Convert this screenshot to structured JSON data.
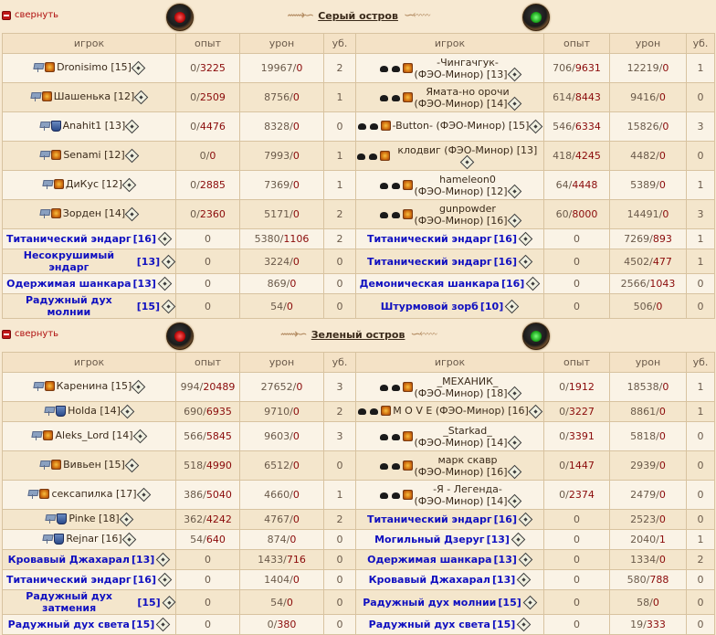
{
  "collapse_label": "свернуть",
  "headers": [
    "игрок",
    "опыт",
    "урон",
    "уб.",
    "игрок",
    "опыт",
    "урон",
    "уб."
  ],
  "islands": [
    {
      "title": "Серый остров",
      "rows": [
        {
          "tall": true,
          "l": {
            "name": "Dronisimo",
            "lvl": "[15]",
            "type": "player",
            "icons": [
              "flag",
              "align"
            ]
          },
          "l_exp": [
            "0",
            "3225"
          ],
          "l_dmg": [
            "19967",
            "0"
          ],
          "l_kills": "2",
          "r": {
            "name": "-Чингачгук-",
            "suffix": "(ФЭО-Минор)",
            "lvl": "[13]",
            "type": "player",
            "icons": [
              "hand",
              "align"
            ],
            "two": true
          },
          "r_exp": [
            "706",
            "9631"
          ],
          "r_dmg": [
            "12219",
            "0"
          ],
          "r_kills": "1"
        },
        {
          "tall": true,
          "l": {
            "name": "Шашенька",
            "lvl": "[12]",
            "type": "player",
            "icons": [
              "flag",
              "align"
            ]
          },
          "l_exp": [
            "0",
            "2509"
          ],
          "l_dmg": [
            "8756",
            "0"
          ],
          "l_kills": "1",
          "r": {
            "name": "Ямата-но орочи",
            "suffix": "(ФЭО-Минор)",
            "lvl": "[14]",
            "type": "player",
            "icons": [
              "hand",
              "align"
            ],
            "two": true
          },
          "r_exp": [
            "614",
            "8443"
          ],
          "r_dmg": [
            "9416",
            "0"
          ],
          "r_kills": "0"
        },
        {
          "tall": true,
          "l": {
            "name": "Anahit1",
            "lvl": "[13]",
            "type": "player",
            "icons": [
              "flag",
              "clan"
            ]
          },
          "l_exp": [
            "0",
            "4476"
          ],
          "l_dmg": [
            "8328",
            "0"
          ],
          "l_kills": "0",
          "r": {
            "name": "-Button-",
            "suffix": "(ФЭО-Минор)",
            "lvl": "[15]",
            "type": "player",
            "icons": [
              "hand",
              "align"
            ]
          },
          "r_exp": [
            "546",
            "6334"
          ],
          "r_dmg": [
            "15826",
            "0"
          ],
          "r_kills": "3"
        },
        {
          "tall": true,
          "l": {
            "name": "Senami",
            "lvl": "[12]",
            "type": "player",
            "icons": [
              "flag",
              "align"
            ]
          },
          "l_exp": [
            "0",
            "0"
          ],
          "l_dmg": [
            "7993",
            "0"
          ],
          "l_kills": "1",
          "r": {
            "name": "клодвиг",
            "suffix": "(ФЭО-Минор)",
            "lvl": "[13]",
            "type": "player",
            "icons": [
              "hand",
              "align"
            ]
          },
          "r_exp": [
            "418",
            "4245"
          ],
          "r_dmg": [
            "4482",
            "0"
          ],
          "r_kills": "0"
        },
        {
          "tall": true,
          "l": {
            "name": "ДиКус",
            "lvl": "[12]",
            "type": "player",
            "icons": [
              "flag",
              "align"
            ]
          },
          "l_exp": [
            "0",
            "2885"
          ],
          "l_dmg": [
            "7369",
            "0"
          ],
          "l_kills": "1",
          "r": {
            "name": "hameleon0",
            "suffix": "(ФЭО-Минор)",
            "lvl": "[12]",
            "type": "player",
            "icons": [
              "hand",
              "align"
            ],
            "two": true
          },
          "r_exp": [
            "64",
            "4448"
          ],
          "r_dmg": [
            "5389",
            "0"
          ],
          "r_kills": "1"
        },
        {
          "tall": true,
          "l": {
            "name": "Зорден",
            "lvl": "[14]",
            "type": "player",
            "icons": [
              "flag",
              "align"
            ]
          },
          "l_exp": [
            "0",
            "2360"
          ],
          "l_dmg": [
            "5171",
            "0"
          ],
          "l_kills": "2",
          "r": {
            "name": "gunpowder",
            "suffix": "(ФЭО-Минор)",
            "lvl": "[16]",
            "type": "player",
            "icons": [
              "hand",
              "align"
            ],
            "two": true
          },
          "r_exp": [
            "60",
            "8000"
          ],
          "r_dmg": [
            "14491",
            "0"
          ],
          "r_kills": "3"
        },
        {
          "l": {
            "name": "Титанический эндарг",
            "lvl": "[16]",
            "type": "bot"
          },
          "l_exp": [
            "0"
          ],
          "l_dmg": [
            "5380",
            "1106"
          ],
          "l_kills": "2",
          "r": {
            "name": "Титанический эндарг",
            "lvl": "[16]",
            "type": "bot"
          },
          "r_exp": [
            "0"
          ],
          "r_dmg": [
            "7269",
            "893"
          ],
          "r_kills": "1"
        },
        {
          "l": {
            "name": "Несокрушимый эндарг",
            "lvl": "[13]",
            "type": "bot"
          },
          "l_exp": [
            "0"
          ],
          "l_dmg": [
            "3224",
            "0"
          ],
          "l_kills": "0",
          "r": {
            "name": "Титанический эндарг",
            "lvl": "[16]",
            "type": "bot"
          },
          "r_exp": [
            "0"
          ],
          "r_dmg": [
            "4502",
            "477"
          ],
          "r_kills": "1"
        },
        {
          "l": {
            "name": "Одержимая шанкара",
            "lvl": "[13]",
            "type": "bot"
          },
          "l_exp": [
            "0"
          ],
          "l_dmg": [
            "869",
            "0"
          ],
          "l_kills": "0",
          "r": {
            "name": "Демоническая шанкара",
            "lvl": "[16]",
            "type": "bot"
          },
          "r_exp": [
            "0"
          ],
          "r_dmg": [
            "2566",
            "1043"
          ],
          "r_kills": "0"
        },
        {
          "l": {
            "name": "Радужный дух молнии ",
            "lvl": "[15]",
            "type": "bot"
          },
          "l_exp": [
            "0"
          ],
          "l_dmg": [
            "54",
            "0"
          ],
          "l_kills": "0",
          "r": {
            "name": "Штурмовой зорб",
            "lvl": "[10]",
            "type": "bot"
          },
          "r_exp": [
            "0"
          ],
          "r_dmg": [
            "506",
            "0"
          ],
          "r_kills": "0"
        }
      ]
    },
    {
      "title": "Зеленый остров",
      "rows": [
        {
          "tall": true,
          "l": {
            "name": "Каренина",
            "lvl": "[15]",
            "type": "player",
            "icons": [
              "flag",
              "align"
            ]
          },
          "l_exp": [
            "994",
            "20489"
          ],
          "l_dmg": [
            "27652",
            "0"
          ],
          "l_kills": "3",
          "r": {
            "name": "_МЕХАНИК_",
            "suffix": "(ФЭО-Минор)",
            "lvl": "[18]",
            "type": "player",
            "icons": [
              "hand",
              "align"
            ],
            "two": true
          },
          "r_exp": [
            "0",
            "1912"
          ],
          "r_dmg": [
            "18538",
            "0"
          ],
          "r_kills": "1"
        },
        {
          "l": {
            "name": "Holda",
            "lvl": "[14]",
            "type": "player",
            "icons": [
              "flag",
              "clan"
            ]
          },
          "l_exp": [
            "690",
            "6935"
          ],
          "l_dmg": [
            "9710",
            "0"
          ],
          "l_kills": "2",
          "r": {
            "name": "M O V E",
            "suffix": "(ФЭО-Минор)",
            "lvl": "[16]",
            "type": "player",
            "icons": [
              "hand",
              "align"
            ]
          },
          "r_exp": [
            "0",
            "3227"
          ],
          "r_dmg": [
            "8861",
            "0"
          ],
          "r_kills": "1"
        },
        {
          "tall": true,
          "l": {
            "name": "Aleks_Lord",
            "lvl": "[14]",
            "type": "player",
            "icons": [
              "flag",
              "align"
            ]
          },
          "l_exp": [
            "566",
            "5845"
          ],
          "l_dmg": [
            "9603",
            "0"
          ],
          "l_kills": "3",
          "r": {
            "name": "_Starkad_",
            "suffix": "(ФЭО-Минор)",
            "lvl": "[14]",
            "type": "player",
            "icons": [
              "hand",
              "align"
            ],
            "two": true
          },
          "r_exp": [
            "0",
            "3391"
          ],
          "r_dmg": [
            "5818",
            "0"
          ],
          "r_kills": "0"
        },
        {
          "tall": true,
          "l": {
            "name": "Вивьен",
            "lvl": "[15]",
            "type": "player",
            "icons": [
              "flag",
              "align"
            ]
          },
          "l_exp": [
            "518",
            "4990"
          ],
          "l_dmg": [
            "6512",
            "0"
          ],
          "l_kills": "0",
          "r": {
            "name": "марк скавр",
            "suffix": "(ФЭО-Минор)",
            "lvl": "[16]",
            "type": "player",
            "icons": [
              "hand",
              "align"
            ],
            "two": true
          },
          "r_exp": [
            "0",
            "1447"
          ],
          "r_dmg": [
            "2939",
            "0"
          ],
          "r_kills": "0"
        },
        {
          "tall": true,
          "l": {
            "name": "сексапилка",
            "lvl": "[17]",
            "type": "player",
            "icons": [
              "flag",
              "align"
            ]
          },
          "l_exp": [
            "386",
            "5040"
          ],
          "l_dmg": [
            "4660",
            "0"
          ],
          "l_kills": "1",
          "r": {
            "name": "-Я - Легенда-",
            "suffix": "(ФЭО-Минор)",
            "lvl": "[14]",
            "type": "player",
            "icons": [
              "hand",
              "align"
            ],
            "two": true
          },
          "r_exp": [
            "0",
            "2374"
          ],
          "r_dmg": [
            "2479",
            "0"
          ],
          "r_kills": "0"
        },
        {
          "l": {
            "name": "Pinke",
            "lvl": "[18]",
            "type": "player",
            "icons": [
              "flag",
              "clan"
            ]
          },
          "l_exp": [
            "362",
            "4242"
          ],
          "l_dmg": [
            "4767",
            "0"
          ],
          "l_kills": "2",
          "r": {
            "name": "Титанический эндарг",
            "lvl": "[16]",
            "type": "bot"
          },
          "r_exp": [
            "0"
          ],
          "r_dmg": [
            "2523",
            "0"
          ],
          "r_kills": "0"
        },
        {
          "l": {
            "name": "Rejnar",
            "lvl": "[16]",
            "type": "player",
            "icons": [
              "flag",
              "clan"
            ]
          },
          "l_exp": [
            "54",
            "640"
          ],
          "l_dmg": [
            "874",
            "0"
          ],
          "l_kills": "0",
          "r": {
            "name": "Могильный Дзеруг",
            "lvl": "[13]",
            "type": "bot"
          },
          "r_exp": [
            "0"
          ],
          "r_dmg": [
            "2040",
            "1"
          ],
          "r_kills": "1"
        },
        {
          "l": {
            "name": "Кровавый Джахарал",
            "lvl": "[13]",
            "type": "bot"
          },
          "l_exp": [
            "0"
          ],
          "l_dmg": [
            "1433",
            "716"
          ],
          "l_kills": "0",
          "r": {
            "name": "Одержимая шанкара",
            "lvl": "[13]",
            "type": "bot"
          },
          "r_exp": [
            "0"
          ],
          "r_dmg": [
            "1334",
            "0"
          ],
          "r_kills": "2"
        },
        {
          "l": {
            "name": "Титанический эндарг",
            "lvl": "[16]",
            "type": "bot"
          },
          "l_exp": [
            "0"
          ],
          "l_dmg": [
            "1404",
            "0"
          ],
          "l_kills": "0",
          "r": {
            "name": "Кровавый Джахарал",
            "lvl": "[13]",
            "type": "bot"
          },
          "r_exp": [
            "0"
          ],
          "r_dmg": [
            "580",
            "788"
          ],
          "r_kills": "0"
        },
        {
          "l": {
            "name": "Радужный дух затмения ",
            "lvl": "[15]",
            "type": "bot"
          },
          "l_exp": [
            "0"
          ],
          "l_dmg": [
            "54",
            "0"
          ],
          "l_kills": "0",
          "r": {
            "name": "Радужный дух молнии ",
            "lvl": "[15]",
            "type": "bot"
          },
          "r_exp": [
            "0"
          ],
          "r_dmg": [
            "58",
            "0"
          ],
          "r_kills": "0"
        },
        {
          "l": {
            "name": "Радужный дух света ",
            "lvl": "[15]",
            "type": "bot"
          },
          "l_exp": [
            "0"
          ],
          "l_dmg": [
            "0",
            "380"
          ],
          "l_kills": "0",
          "r": {
            "name": "Радужный дух света ",
            "lvl": "[15]",
            "type": "bot"
          },
          "r_exp": [
            "0"
          ],
          "r_dmg": [
            "19",
            "333"
          ],
          "r_kills": "0"
        }
      ]
    }
  ]
}
